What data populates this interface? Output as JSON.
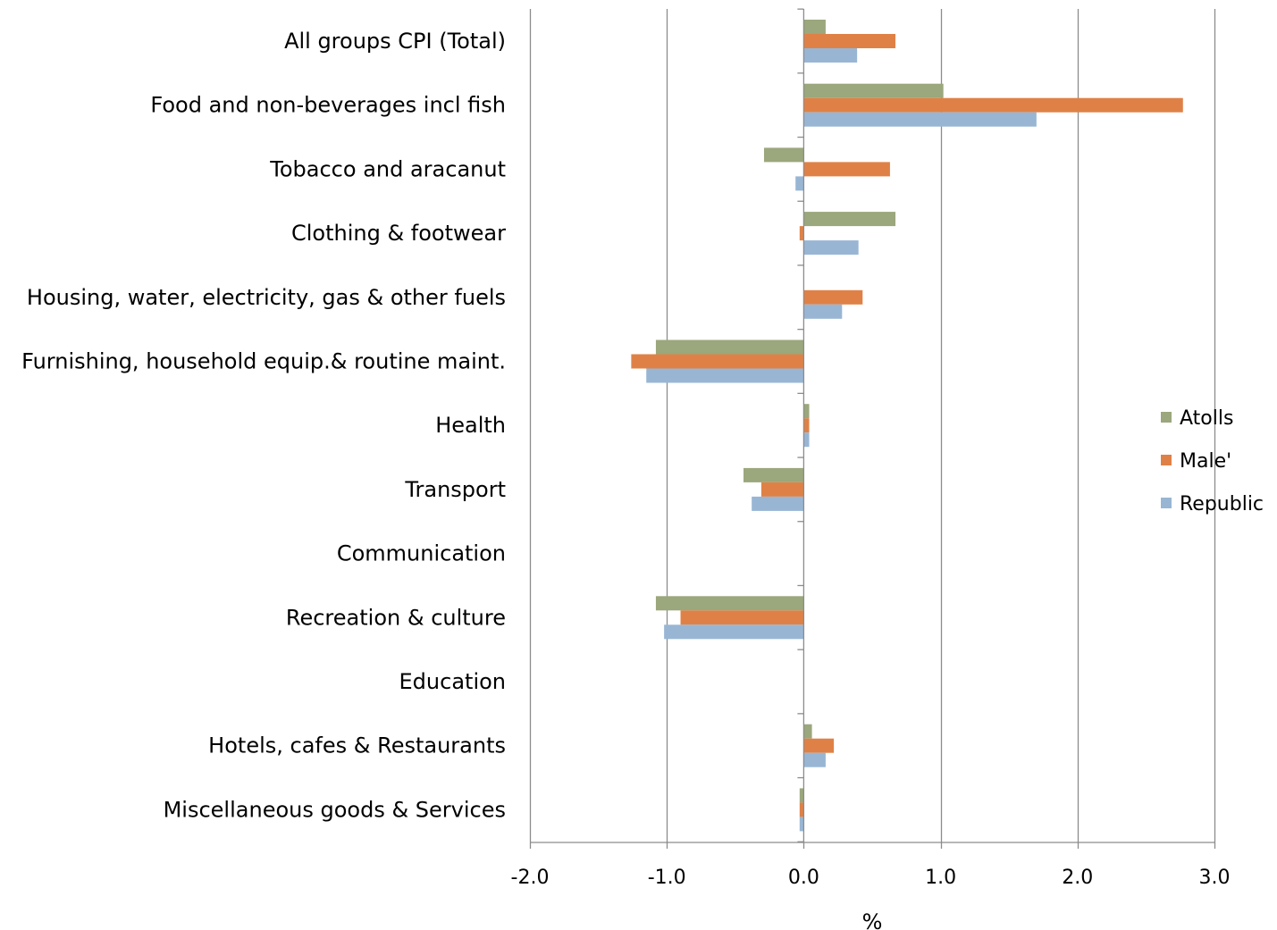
{
  "chart_data": {
    "type": "bar",
    "orientation": "horizontal",
    "title": "",
    "xlabel": "%",
    "ylabel": "",
    "xlim": [
      -2.0,
      3.0
    ],
    "x_ticks": [
      "-2.0",
      "-1.0",
      "0.0",
      "1.0",
      "2.0",
      "3.0"
    ],
    "x_tick_values": [
      -2,
      -1,
      0,
      1,
      2,
      3
    ],
    "grid": "vertical",
    "legend_position": "right",
    "categories": [
      "All groups CPI (Total)",
      "Food and non-beverages incl fish",
      "Tobacco and aracanut",
      "Clothing & footwear",
      "Housing, water, electricity, gas & other fuels",
      "Furnishing, household equip.& routine maint.",
      "Health",
      "Transport",
      "Communication",
      "Recreation & culture ",
      "Education",
      "Hotels, cafes & Restaurants ",
      "Miscellaneous goods & Services "
    ],
    "series": [
      {
        "name": "Atolls",
        "color": "#9BA77C",
        "values": [
          0.16,
          1.02,
          -0.29,
          0.67,
          0.0,
          -1.08,
          0.04,
          -0.44,
          0.0,
          -1.08,
          0.0,
          0.06,
          -0.03
        ]
      },
      {
        "name": "Male'",
        "color": "#DF8146",
        "values": [
          0.67,
          2.77,
          0.63,
          -0.03,
          0.43,
          -1.26,
          0.04,
          -0.31,
          0.0,
          -0.9,
          0.0,
          0.22,
          -0.03
        ]
      },
      {
        "name": "Republic",
        "color": "#98B6D4",
        "values": [
          0.39,
          1.7,
          -0.06,
          0.4,
          0.28,
          -1.15,
          0.04,
          -0.38,
          0.0,
          -1.02,
          0.0,
          0.16,
          -0.03
        ]
      }
    ]
  }
}
